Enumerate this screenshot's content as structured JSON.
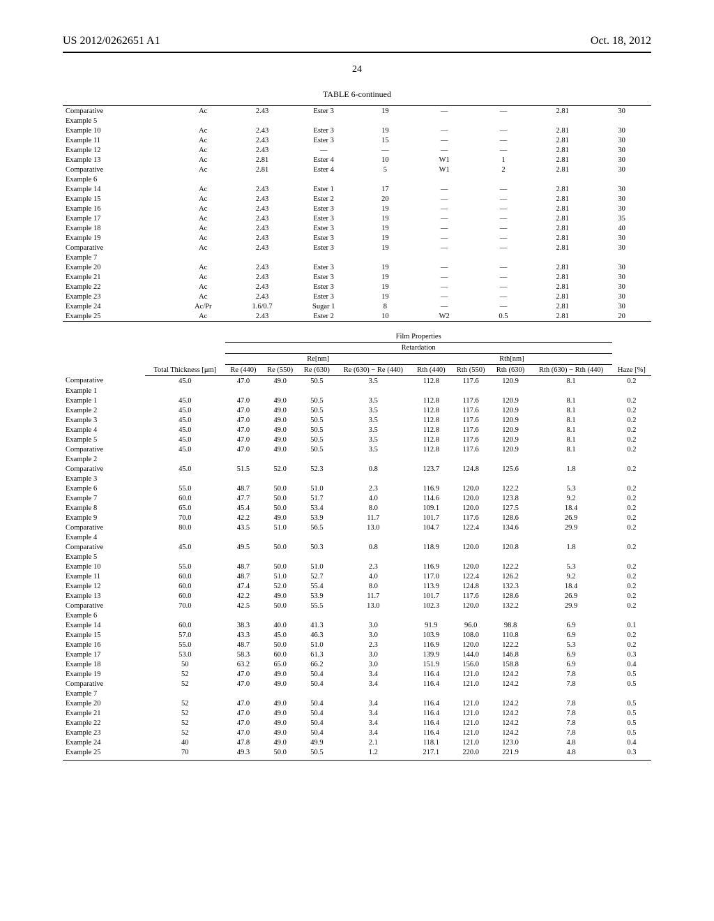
{
  "header": {
    "left": "US 2012/0262651 A1",
    "right": "Oct. 18, 2012"
  },
  "pageNumber": "24",
  "table1": {
    "caption": "TABLE 6-continued",
    "rows": [
      [
        "Comparative Example 5",
        "Ac",
        "2.43",
        "Ester 3",
        "19",
        "—",
        "—",
        "2.81",
        "30"
      ],
      [
        "Example 10",
        "Ac",
        "2.43",
        "Ester 3",
        "19",
        "—",
        "—",
        "2.81",
        "30"
      ],
      [
        "Example 11",
        "Ac",
        "2.43",
        "Ester 3",
        "15",
        "—",
        "—",
        "2.81",
        "30"
      ],
      [
        "Example 12",
        "Ac",
        "2.43",
        "—",
        "—",
        "—",
        "—",
        "2.81",
        "30"
      ],
      [
        "Example 13",
        "Ac",
        "2.81",
        "Ester 4",
        "10",
        "W1",
        "1",
        "2.81",
        "30"
      ],
      [
        "Comparative Example 6",
        "Ac",
        "2.81",
        "Ester 4",
        "5",
        "W1",
        "2",
        "2.81",
        "30"
      ],
      [
        "Example 14",
        "Ac",
        "2.43",
        "Ester 1",
        "17",
        "—",
        "—",
        "2.81",
        "30"
      ],
      [
        "Example 15",
        "Ac",
        "2.43",
        "Ester 2",
        "20",
        "—",
        "—",
        "2.81",
        "30"
      ],
      [
        "Example 16",
        "Ac",
        "2.43",
        "Ester 3",
        "19",
        "—",
        "—",
        "2.81",
        "30"
      ],
      [
        "Example 17",
        "Ac",
        "2.43",
        "Ester 3",
        "19",
        "—",
        "—",
        "2.81",
        "35"
      ],
      [
        "Example 18",
        "Ac",
        "2.43",
        "Ester 3",
        "19",
        "—",
        "—",
        "2.81",
        "40"
      ],
      [
        "Example 19",
        "Ac",
        "2.43",
        "Ester 3",
        "19",
        "—",
        "—",
        "2.81",
        "30"
      ],
      [
        "Comparative Example 7",
        "Ac",
        "2.43",
        "Ester 3",
        "19",
        "—",
        "—",
        "2.81",
        "30"
      ],
      [
        "Example 20",
        "Ac",
        "2.43",
        "Ester 3",
        "19",
        "—",
        "—",
        "2.81",
        "30"
      ],
      [
        "Example 21",
        "Ac",
        "2.43",
        "Ester 3",
        "19",
        "—",
        "—",
        "2.81",
        "30"
      ],
      [
        "Example 22",
        "Ac",
        "2.43",
        "Ester 3",
        "19",
        "—",
        "—",
        "2.81",
        "30"
      ],
      [
        "Example 23",
        "Ac",
        "2.43",
        "Ester 3",
        "19",
        "—",
        "—",
        "2.81",
        "30"
      ],
      [
        "Example 24",
        "Ac/Pr",
        "1.6/0.7",
        "Sugar 1",
        "8",
        "—",
        "—",
        "2.81",
        "30"
      ],
      [
        "Example 25",
        "Ac",
        "2.43",
        "Ester 2",
        "10",
        "W2",
        "0.5",
        "2.81",
        "20"
      ]
    ]
  },
  "table2": {
    "super1": "Film Properties",
    "super2": "Retardation",
    "groupRe": "Re[nm]",
    "groupRth": "Rth[nm]",
    "cols": [
      "Total Thickness [μm]",
      "Re (440)",
      "Re (550)",
      "Re (630)",
      "Re (630) − Re (440)",
      "Rth (440)",
      "Rth (550)",
      "Rth (630)",
      "Rth (630) − Rth (440)",
      "Haze [%]"
    ],
    "rows": [
      [
        "Comparative Example 1",
        "45.0",
        "47.0",
        "49.0",
        "50.5",
        "3.5",
        "112.8",
        "117.6",
        "120.9",
        "8.1",
        "0.2"
      ],
      [
        "Example 1",
        "45.0",
        "47.0",
        "49.0",
        "50.5",
        "3.5",
        "112.8",
        "117.6",
        "120.9",
        "8.1",
        "0.2"
      ],
      [
        "Example 2",
        "45.0",
        "47.0",
        "49.0",
        "50.5",
        "3.5",
        "112.8",
        "117.6",
        "120.9",
        "8.1",
        "0.2"
      ],
      [
        "Example 3",
        "45.0",
        "47.0",
        "49.0",
        "50.5",
        "3.5",
        "112.8",
        "117.6",
        "120.9",
        "8.1",
        "0.2"
      ],
      [
        "Example 4",
        "45.0",
        "47.0",
        "49.0",
        "50.5",
        "3.5",
        "112.8",
        "117.6",
        "120.9",
        "8.1",
        "0.2"
      ],
      [
        "Example 5",
        "45.0",
        "47.0",
        "49.0",
        "50.5",
        "3.5",
        "112.8",
        "117.6",
        "120.9",
        "8.1",
        "0.2"
      ],
      [
        "Comparative Example 2",
        "45.0",
        "47.0",
        "49.0",
        "50.5",
        "3.5",
        "112.8",
        "117.6",
        "120.9",
        "8.1",
        "0.2"
      ],
      [
        "Comparative Example 3",
        "45.0",
        "51.5",
        "52.0",
        "52.3",
        "0.8",
        "123.7",
        "124.8",
        "125.6",
        "1.8",
        "0.2"
      ],
      [
        "Example 6",
        "55.0",
        "48.7",
        "50.0",
        "51.0",
        "2.3",
        "116.9",
        "120.0",
        "122.2",
        "5.3",
        "0.2"
      ],
      [
        "Example 7",
        "60.0",
        "47.7",
        "50.0",
        "51.7",
        "4.0",
        "114.6",
        "120.0",
        "123.8",
        "9.2",
        "0.2"
      ],
      [
        "Example 8",
        "65.0",
        "45.4",
        "50.0",
        "53.4",
        "8.0",
        "109.1",
        "120.0",
        "127.5",
        "18.4",
        "0.2"
      ],
      [
        "Example 9",
        "70.0",
        "42.2",
        "49.0",
        "53.9",
        "11.7",
        "101.7",
        "117.6",
        "128.6",
        "26.9",
        "0.2"
      ],
      [
        "Comparative Example 4",
        "80.0",
        "43.5",
        "51.0",
        "56.5",
        "13.0",
        "104.7",
        "122.4",
        "134.6",
        "29.9",
        "0.2"
      ],
      [
        "Comparative Example 5",
        "45.0",
        "49.5",
        "50.0",
        "50.3",
        "0.8",
        "118.9",
        "120.0",
        "120.8",
        "1.8",
        "0.2"
      ],
      [
        "Example 10",
        "55.0",
        "48.7",
        "50.0",
        "51.0",
        "2.3",
        "116.9",
        "120.0",
        "122.2",
        "5.3",
        "0.2"
      ],
      [
        "Example 11",
        "60.0",
        "48.7",
        "51.0",
        "52.7",
        "4.0",
        "117.0",
        "122.4",
        "126.2",
        "9.2",
        "0.2"
      ],
      [
        "Example 12",
        "60.0",
        "47.4",
        "52.0",
        "55.4",
        "8.0",
        "113.9",
        "124.8",
        "132.3",
        "18.4",
        "0.2"
      ],
      [
        "Example 13",
        "60.0",
        "42.2",
        "49.0",
        "53.9",
        "11.7",
        "101.7",
        "117.6",
        "128.6",
        "26.9",
        "0.2"
      ],
      [
        "Comparative Example 6",
        "70.0",
        "42.5",
        "50.0",
        "55.5",
        "13.0",
        "102.3",
        "120.0",
        "132.2",
        "29.9",
        "0.2"
      ],
      [
        "Example 14",
        "60.0",
        "38.3",
        "40.0",
        "41.3",
        "3.0",
        "91.9",
        "96.0",
        "98.8",
        "6.9",
        "0.1"
      ],
      [
        "Example 15",
        "57.0",
        "43.3",
        "45.0",
        "46.3",
        "3.0",
        "103.9",
        "108.0",
        "110.8",
        "6.9",
        "0.2"
      ],
      [
        "Example 16",
        "55.0",
        "48.7",
        "50.0",
        "51.0",
        "2.3",
        "116.9",
        "120.0",
        "122.2",
        "5.3",
        "0.2"
      ],
      [
        "Example 17",
        "53.0",
        "58.3",
        "60.0",
        "61.3",
        "3.0",
        "139.9",
        "144.0",
        "146.8",
        "6.9",
        "0.3"
      ],
      [
        "Example 18",
        "50",
        "63.2",
        "65.0",
        "66.2",
        "3.0",
        "151.9",
        "156.0",
        "158.8",
        "6.9",
        "0.4"
      ],
      [
        "Example 19",
        "52",
        "47.0",
        "49.0",
        "50.4",
        "3.4",
        "116.4",
        "121.0",
        "124.2",
        "7.8",
        "0.5"
      ],
      [
        "Comparative Example 7",
        "52",
        "47.0",
        "49.0",
        "50.4",
        "3.4",
        "116.4",
        "121.0",
        "124.2",
        "7.8",
        "0.5"
      ],
      [
        "Example 20",
        "52",
        "47.0",
        "49.0",
        "50.4",
        "3.4",
        "116.4",
        "121.0",
        "124.2",
        "7.8",
        "0.5"
      ],
      [
        "Example 21",
        "52",
        "47.0",
        "49.0",
        "50.4",
        "3.4",
        "116.4",
        "121.0",
        "124.2",
        "7.8",
        "0.5"
      ],
      [
        "Example 22",
        "52",
        "47.0",
        "49.0",
        "50.4",
        "3.4",
        "116.4",
        "121.0",
        "124.2",
        "7.8",
        "0.5"
      ],
      [
        "Example 23",
        "52",
        "47.0",
        "49.0",
        "50.4",
        "3.4",
        "116.4",
        "121.0",
        "124.2",
        "7.8",
        "0.5"
      ],
      [
        "Example 24",
        "40",
        "47.8",
        "49.0",
        "49.9",
        "2.1",
        "118.1",
        "121.0",
        "123.0",
        "4.8",
        "0.4"
      ],
      [
        "Example 25",
        "70",
        "49.3",
        "50.0",
        "50.5",
        "1.2",
        "217.1",
        "220.0",
        "221.9",
        "4.8",
        "0.3"
      ]
    ]
  }
}
